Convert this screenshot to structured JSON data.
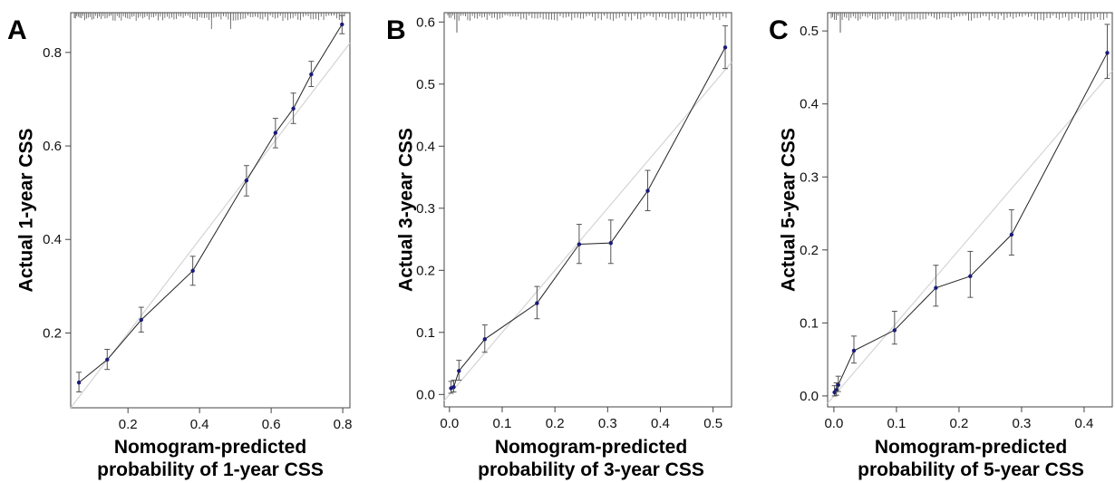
{
  "chart_data": [
    {
      "type": "scatter",
      "panel": "A",
      "xlabel": [
        "Nomogram-predicted",
        "probability of 1-year CSS"
      ],
      "ylabel": "Actual 1-year CSS",
      "xlim": [
        0.04,
        0.82
      ],
      "ylim": [
        0.04,
        0.885
      ],
      "xticks": [
        "0.2",
        "0.4",
        "0.6",
        "0.8"
      ],
      "yticks": [
        "0.2",
        "0.4",
        "0.6",
        "0.8"
      ],
      "reference_line": [
        [
          0.04,
          0.04
        ],
        [
          0.82,
          0.82
        ]
      ],
      "series": [
        {
          "x": [
            0.063,
            0.142,
            0.237,
            0.381,
            0.531,
            0.612,
            0.662,
            0.712,
            0.798
          ],
          "y": [
            0.094,
            0.143,
            0.228,
            0.333,
            0.526,
            0.628,
            0.68,
            0.753,
            0.86
          ],
          "lower": [
            0.074,
            0.122,
            0.202,
            0.302,
            0.493,
            0.596,
            0.648,
            0.727,
            0.84
          ],
          "upper": [
            0.116,
            0.165,
            0.255,
            0.364,
            0.558,
            0.659,
            0.713,
            0.781,
            0.879
          ]
        }
      ],
      "rug_ticks": 120
    },
    {
      "type": "scatter",
      "panel": "B",
      "xlabel": [
        "Nomogram-predicted",
        "probability of 3-year CSS"
      ],
      "ylabel": "Actual 3-year CSS",
      "xlim": [
        -0.01,
        0.535
      ],
      "ylim": [
        -0.02,
        0.615
      ],
      "xticks": [
        "0.0",
        "0.1",
        "0.2",
        "0.3",
        "0.4",
        "0.5"
      ],
      "yticks": [
        "0.0",
        "0.1",
        "0.2",
        "0.3",
        "0.4",
        "0.5",
        "0.6"
      ],
      "reference_line": [
        [
          -0.01,
          -0.01
        ],
        [
          0.535,
          0.535
        ]
      ],
      "series": [
        {
          "x": [
            0.003,
            0.008,
            0.018,
            0.067,
            0.166,
            0.246,
            0.306,
            0.376,
            0.523
          ],
          "y": [
            0.01,
            0.012,
            0.038,
            0.089,
            0.147,
            0.242,
            0.244,
            0.328,
            0.559
          ],
          "lower": [
            0.002,
            0.004,
            0.023,
            0.068,
            0.122,
            0.211,
            0.211,
            0.296,
            0.525
          ],
          "upper": [
            0.021,
            0.023,
            0.055,
            0.112,
            0.174,
            0.274,
            0.281,
            0.361,
            0.594
          ]
        }
      ],
      "rug_ticks": 100
    },
    {
      "type": "scatter",
      "panel": "C",
      "xlabel": [
        "Nomogram-predicted",
        "probability of 5-year CSS"
      ],
      "ylabel": "Actual 5-year CSS",
      "xlim": [
        -0.01,
        0.445
      ],
      "ylim": [
        -0.015,
        0.525
      ],
      "xticks": [
        "0.0",
        "0.1",
        "0.2",
        "0.3",
        "0.4"
      ],
      "yticks": [
        "0.0",
        "0.1",
        "0.2",
        "0.3",
        "0.4",
        "0.5"
      ],
      "reference_line": [
        [
          -0.01,
          -0.01
        ],
        [
          0.445,
          0.445
        ]
      ],
      "series": [
        {
          "x": [
            0.001,
            0.004,
            0.007,
            0.032,
            0.097,
            0.163,
            0.218,
            0.284,
            0.437
          ],
          "y": [
            0.005,
            0.008,
            0.015,
            0.062,
            0.09,
            0.148,
            0.164,
            0.221,
            0.47
          ],
          "lower": [
            0.0,
            0.001,
            0.006,
            0.045,
            0.071,
            0.123,
            0.135,
            0.193,
            0.435
          ],
          "upper": [
            0.014,
            0.018,
            0.027,
            0.082,
            0.116,
            0.179,
            0.198,
            0.255,
            0.509
          ]
        }
      ],
      "rug_ticks": 100
    }
  ]
}
